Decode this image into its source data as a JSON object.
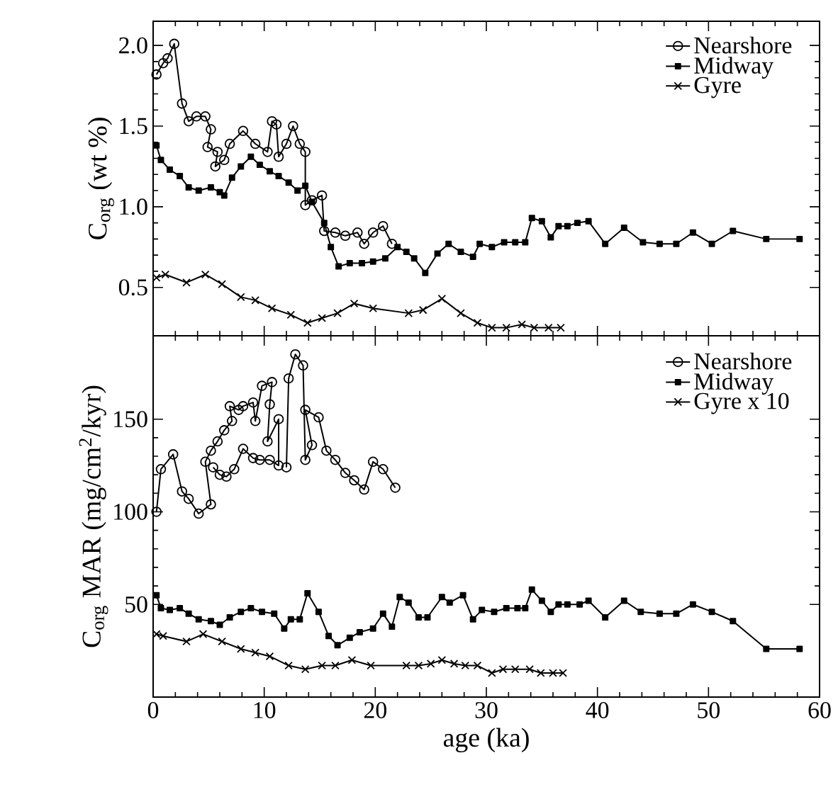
{
  "chart_data": [
    {
      "type": "line",
      "ylabel": "C$_{org}$ (wt %)",
      "xlim": [
        0,
        60
      ],
      "xticks": [
        0,
        10,
        20,
        30,
        40,
        50,
        60
      ],
      "ylim": [
        0.2,
        2.15
      ],
      "yticks": [
        {
          "value": 0.5,
          "label": "0.5"
        },
        {
          "value": 1.0,
          "label": "1.0"
        },
        {
          "value": 1.5,
          "label": "1.5"
        },
        {
          "value": 2.0,
          "label": "2.0"
        }
      ],
      "tick_labels": "y",
      "legend": "top right",
      "grid": false,
      "series": [
        {
          "name": "Nearshore",
          "color": "#000000",
          "marker": "circle",
          "x": [
            0.3,
            0.9,
            1.3,
            1.9,
            2.6,
            3.2,
            3.9,
            4.7,
            5.2,
            4.9,
            5.8,
            5.6,
            6.4,
            6.9,
            8.1,
            9.2,
            10.3,
            10.7,
            11.1,
            11.3,
            12.0,
            12.6,
            13.2,
            13.7,
            13.7,
            14.3,
            15.2,
            15.4,
            16.4,
            17.3,
            18.4,
            19.0,
            19.8,
            20.7,
            21.5
          ],
          "values": [
            1.82,
            1.89,
            1.92,
            2.01,
            1.64,
            1.53,
            1.56,
            1.56,
            1.48,
            1.37,
            1.34,
            1.25,
            1.29,
            1.39,
            1.47,
            1.39,
            1.34,
            1.53,
            1.51,
            1.31,
            1.39,
            1.5,
            1.39,
            1.34,
            1.01,
            1.04,
            1.07,
            0.85,
            0.84,
            0.82,
            0.84,
            0.77,
            0.84,
            0.88,
            0.77
          ]
        },
        {
          "name": "Midway",
          "color": "#000000",
          "marker": "square",
          "x": [
            0.3,
            0.7,
            1.5,
            2.4,
            3.2,
            4.1,
            5.2,
            6.0,
            6.4,
            7.1,
            7.9,
            8.8,
            9.6,
            10.5,
            11.3,
            12.2,
            13.0,
            13.7,
            14.3,
            15.4,
            16.0,
            16.7,
            17.7,
            18.8,
            19.8,
            20.9,
            22.0,
            22.8,
            23.5,
            24.5,
            25.6,
            26.6,
            27.7,
            28.8,
            29.4,
            30.5,
            31.6,
            32.6,
            33.5,
            34.1,
            35.0,
            35.8,
            36.5,
            37.3,
            38.2,
            39.2,
            40.7,
            42.4,
            44.1,
            45.6,
            47.1,
            48.6,
            50.3,
            52.2,
            55.2,
            58.2
          ],
          "values": [
            1.38,
            1.29,
            1.23,
            1.19,
            1.12,
            1.1,
            1.12,
            1.09,
            1.07,
            1.18,
            1.25,
            1.31,
            1.26,
            1.22,
            1.19,
            1.15,
            1.1,
            1.13,
            1.03,
            0.9,
            0.75,
            0.63,
            0.65,
            0.65,
            0.66,
            0.68,
            0.75,
            0.72,
            0.68,
            0.59,
            0.71,
            0.77,
            0.72,
            0.69,
            0.77,
            0.75,
            0.78,
            0.78,
            0.78,
            0.93,
            0.91,
            0.81,
            0.88,
            0.88,
            0.9,
            0.91,
            0.77,
            0.87,
            0.78,
            0.77,
            0.77,
            0.84,
            0.77,
            0.85,
            0.8,
            0.8
          ]
        },
        {
          "name": "Gyre",
          "color": "#000000",
          "marker": "cross",
          "x": [
            0.3,
            1.1,
            3.0,
            4.7,
            6.2,
            7.9,
            9.2,
            10.7,
            12.4,
            13.9,
            15.2,
            16.6,
            18.1,
            19.8,
            23.0,
            24.3,
            26.0,
            27.7,
            29.2,
            30.5,
            31.8,
            33.2,
            34.3,
            35.6,
            36.7
          ],
          "values": [
            0.56,
            0.58,
            0.53,
            0.58,
            0.52,
            0.44,
            0.42,
            0.37,
            0.33,
            0.28,
            0.31,
            0.34,
            0.4,
            0.37,
            0.34,
            0.36,
            0.43,
            0.34,
            0.28,
            0.25,
            0.25,
            0.27,
            0.25,
            0.25,
            0.25
          ]
        }
      ]
    },
    {
      "type": "line",
      "xlabel": "age (ka)",
      "ylabel": "C$_{org}$ MAR (mg/cm$^{2}$/kyr)",
      "xlim": [
        0,
        60
      ],
      "xticks": [
        0,
        10,
        20,
        30,
        40,
        50,
        60
      ],
      "ylim": [
        0,
        195
      ],
      "yticks": [
        50,
        100,
        150
      ],
      "legend": "top right",
      "grid": false,
      "series": [
        {
          "name": "Nearshore",
          "color": "#000000",
          "marker": "circle",
          "x": [
            0.3,
            0.7,
            1.8,
            2.6,
            3.2,
            4.1,
            5.2,
            4.7,
            5.2,
            5.8,
            6.4,
            7.1,
            6.9,
            7.7,
            8.1,
            9.0,
            9.2,
            9.8,
            10.7,
            10.5,
            10.3,
            11.3,
            11.3,
            10.5,
            9.6,
            9.0,
            8.1,
            7.3,
            6.6,
            6.0,
            5.4,
            11.6,
            12.0,
            12.2,
            12.8,
            13.5,
            13.7,
            14.3,
            13.7,
            14.9,
            15.6,
            16.4,
            17.3,
            18.1,
            19.0,
            19.8,
            20.7,
            21.8
          ],
          "values": [
            100,
            123,
            131,
            111,
            107,
            99,
            104,
            127,
            133,
            138,
            144,
            149,
            157,
            155,
            157,
            159,
            149,
            168,
            170,
            158,
            138,
            150,
            125,
            128,
            128,
            129,
            134,
            123,
            119,
            120,
            124,
            null,
            124,
            172,
            185,
            179,
            128,
            136,
            155,
            151,
            133,
            128,
            121,
            117,
            112,
            127,
            123,
            113
          ]
        },
        {
          "name": "Midway",
          "color": "#000000",
          "marker": "square",
          "x": [
            0.3,
            0.7,
            1.5,
            2.4,
            3.2,
            4.1,
            5.2,
            6.0,
            6.9,
            7.9,
            8.8,
            9.8,
            10.9,
            11.8,
            12.4,
            13.2,
            13.9,
            14.9,
            15.8,
            16.6,
            17.7,
            18.6,
            19.8,
            20.7,
            21.5,
            22.2,
            23.0,
            23.9,
            24.7,
            26.0,
            26.7,
            27.9,
            28.8,
            29.6,
            30.7,
            31.8,
            32.8,
            33.5,
            34.1,
            35.0,
            35.8,
            36.5,
            37.3,
            38.4,
            39.2,
            40.7,
            42.4,
            43.9,
            45.6,
            47.1,
            48.6,
            50.3,
            52.2,
            55.2,
            58.2
          ],
          "values": [
            55,
            48,
            47,
            48,
            45,
            42,
            41,
            39,
            43,
            46,
            48,
            46,
            45,
            37,
            42,
            42,
            56,
            46,
            33,
            28,
            32,
            35,
            37,
            45,
            38,
            54,
            51,
            43,
            43,
            54,
            51,
            55,
            42,
            47,
            46,
            48,
            48,
            48,
            58,
            52,
            46,
            50,
            50,
            50,
            52,
            43,
            52,
            46,
            45,
            45,
            50,
            46,
            41,
            26,
            26
          ]
        },
        {
          "name": "Gyre x 10",
          "color": "#000000",
          "marker": "cross",
          "x": [
            0.3,
            0.9,
            3.0,
            4.5,
            6.2,
            7.9,
            9.2,
            10.5,
            12.2,
            13.7,
            15.2,
            16.4,
            17.9,
            19.6,
            22.8,
            23.9,
            25.0,
            26.0,
            27.1,
            28.1,
            29.2,
            30.5,
            31.5,
            32.6,
            33.9,
            34.9,
            36.0,
            36.9
          ],
          "values": [
            34,
            33,
            30,
            34,
            30,
            26,
            24,
            22,
            17,
            15,
            17,
            17,
            20,
            17,
            17,
            17,
            18,
            20,
            18,
            17,
            17,
            13,
            15,
            15,
            15,
            13,
            13,
            13
          ]
        }
      ]
    }
  ]
}
